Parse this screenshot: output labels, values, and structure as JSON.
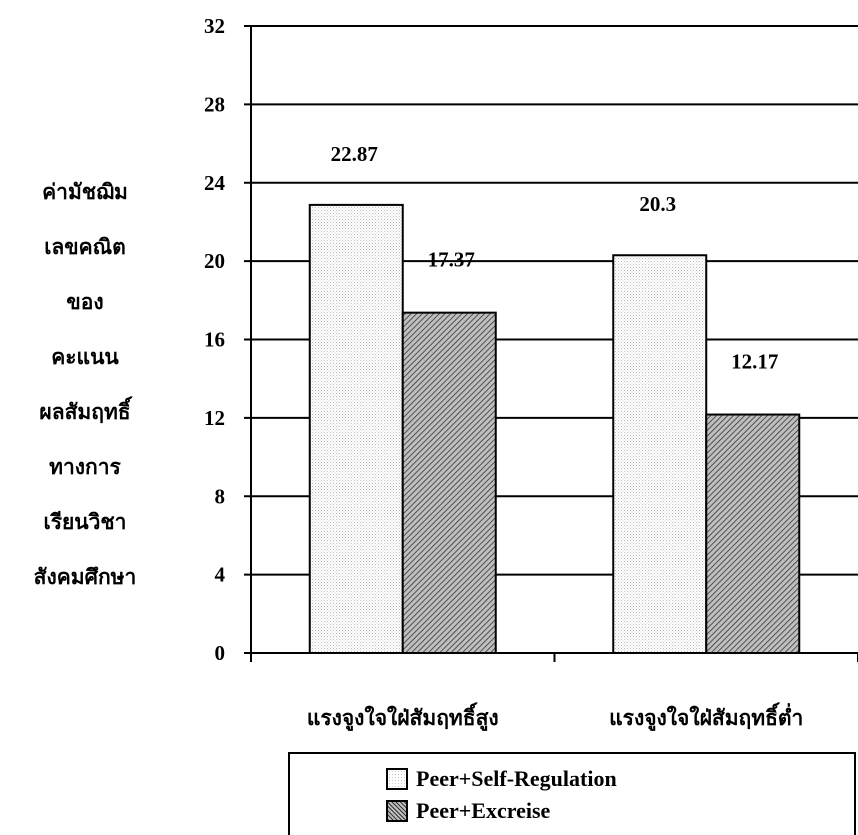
{
  "chart_data": {
    "type": "bar",
    "title": "",
    "ylabel_lines": [
      "ค่ามัชฌิม",
      "เลขคณิต",
      "ของ",
      "คะแนน",
      "ผลสัมฤทธิ์",
      "ทางการ",
      "เรียนวิชา",
      "สังคมศึกษา"
    ],
    "xlabel": "",
    "categories": [
      "แรงจูงใจใฝ่สัมฤทธิ์สูง",
      "แรงจูงใจใฝ่สัมฤทธิ์ต่ำ"
    ],
    "series": [
      {
        "name": "Peer+Self-Regulation",
        "values": [
          22.87,
          20.3
        ],
        "value_labels": [
          "22.87",
          "20.3"
        ],
        "pattern": "dotted-light",
        "color": "#f2f2f2"
      },
      {
        "name": "Peer+Excreise",
        "values": [
          17.37,
          12.17
        ],
        "value_labels": [
          "17.37",
          "12.17"
        ],
        "pattern": "diagonal-hatch",
        "color": "#9a9a9a"
      }
    ],
    "ylim": [
      0,
      32
    ],
    "yticks": [
      0,
      4,
      8,
      12,
      16,
      20,
      24,
      28,
      32
    ],
    "grid": true,
    "legend_position": "bottom"
  }
}
